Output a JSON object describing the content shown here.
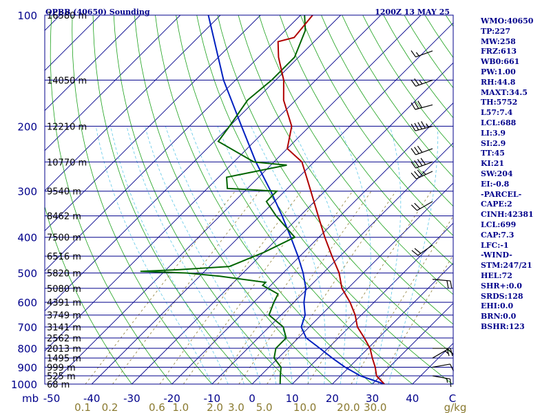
{
  "header": {
    "station": "OPBB (40650) Sounding",
    "time": "1200Z 13 MAY 25"
  },
  "indices": [
    "WMO:40650",
    "TP:227",
    "MW:258",
    "FRZ:613",
    "WB0:661",
    "PW:1.00",
    "RH:44.8",
    "MAXT:34.5",
    "TH:5752",
    "L57:7.4",
    "LCL:688",
    "LI:3.9",
    "SI:2.9",
    "TT:45",
    "KI:21",
    "SW:204",
    "EI:-0.8",
    "-PARCEL-",
    "CAPE:2",
    "CINH:42381",
    "LCL:699",
    "CAP:7.3",
    "LFC:-1",
    "-WIND-",
    "STM:247/21",
    "HEL:72",
    "SHR+:0.0",
    "SRDS:128",
    "EHI:0.0",
    "BRN:0.0",
    "BSHR:123"
  ],
  "colors": {
    "frame": "#00008b",
    "temperature": "#b00000",
    "dewpoint": "#006400",
    "parcel": "#0020c0",
    "dry_adiabats": "#1aa01a",
    "moist_adiabats": "#5fc8e8",
    "mixing_ratio": "#8a7a30"
  },
  "chart_data": {
    "type": "line",
    "diagram": "skew-T log-P",
    "y_scale": "log",
    "ylim": [
      1000,
      100
    ],
    "xlim": [
      -50,
      50
    ],
    "pressure_ticks": [
      100,
      200,
      300,
      400,
      500,
      600,
      700,
      800,
      900,
      1000
    ],
    "y_unit_label": "mb",
    "temperature_ticks": [
      "-50",
      "-40",
      "-30",
      "-20",
      "-10",
      "0",
      "10",
      "20",
      "30",
      "40",
      "C"
    ],
    "mixing_ratio_ticks": [
      "0.1",
      "0.2",
      "0.6",
      "1.0",
      "2.0",
      "3.0",
      "5.0",
      "10.0",
      "20.0",
      "30.0",
      "g/kg"
    ],
    "mixing_ratio_values": [
      0.1,
      0.2,
      0.6,
      1.0,
      2.0,
      3.0,
      5.0,
      10.0,
      20.0,
      30.0
    ],
    "height_labels": [
      {
        "p": 100,
        "label": "16580 m"
      },
      {
        "p": 150,
        "label": "14050 m"
      },
      {
        "p": 200,
        "label": "12210 m"
      },
      {
        "p": 250,
        "label": "10770 m"
      },
      {
        "p": 300,
        "label": "9540 m"
      },
      {
        "p": 350,
        "label": "8462 m"
      },
      {
        "p": 400,
        "label": "7500 m"
      },
      {
        "p": 450,
        "label": "6516 m"
      },
      {
        "p": 500,
        "label": "5820 m"
      },
      {
        "p": 550,
        "label": "5080 m"
      },
      {
        "p": 600,
        "label": "4391 m"
      },
      {
        "p": 650,
        "label": "3749 m"
      },
      {
        "p": 700,
        "label": "3141 m"
      },
      {
        "p": 750,
        "label": "2562 m"
      },
      {
        "p": 800,
        "label": "2013 m"
      },
      {
        "p": 850,
        "label": "1495 m"
      },
      {
        "p": 900,
        "label": "999 m"
      },
      {
        "p": 950,
        "label": "525 m"
      },
      {
        "p": 1000,
        "label": "68 m"
      }
    ],
    "temperature_profile": [
      {
        "p": 1000,
        "t": 33.0
      },
      {
        "p": 950,
        "t": 29.0
      },
      {
        "p": 900,
        "t": 26.5
      },
      {
        "p": 850,
        "t": 23.5
      },
      {
        "p": 800,
        "t": 20.5
      },
      {
        "p": 750,
        "t": 16.5
      },
      {
        "p": 700,
        "t": 12.0
      },
      {
        "p": 650,
        "t": 8.5
      },
      {
        "p": 600,
        "t": 4.0
      },
      {
        "p": 550,
        "t": -1.5
      },
      {
        "p": 500,
        "t": -6.0
      },
      {
        "p": 450,
        "t": -12.0
      },
      {
        "p": 400,
        "t": -18.5
      },
      {
        "p": 350,
        "t": -25.5
      },
      {
        "p": 300,
        "t": -33.5
      },
      {
        "p": 250,
        "t": -43.0
      },
      {
        "p": 230,
        "t": -50.0
      },
      {
        "p": 200,
        "t": -54.5
      },
      {
        "p": 170,
        "t": -63.0
      },
      {
        "p": 150,
        "t": -68.0
      },
      {
        "p": 130,
        "t": -75.0
      },
      {
        "p": 118,
        "t": -79.0
      },
      {
        "p": 115,
        "t": -76.0
      },
      {
        "p": 100,
        "t": -77.0
      }
    ],
    "dewpoint_profile": [
      {
        "p": 1000,
        "t": 7.0
      },
      {
        "p": 950,
        "t": 5.0
      },
      {
        "p": 900,
        "t": 3.0
      },
      {
        "p": 850,
        "t": -1.0
      },
      {
        "p": 800,
        "t": -3.0
      },
      {
        "p": 750,
        "t": -3.0
      },
      {
        "p": 700,
        "t": -6.5
      },
      {
        "p": 650,
        "t": -13.0
      },
      {
        "p": 600,
        "t": -15.0
      },
      {
        "p": 570,
        "t": -16.0
      },
      {
        "p": 540,
        "t": -22.0
      },
      {
        "p": 530,
        "t": -22.0
      },
      {
        "p": 510,
        "t": -35.0
      },
      {
        "p": 500,
        "t": -44.0
      },
      {
        "p": 495,
        "t": -56.0
      },
      {
        "p": 490,
        "t": -47.0
      },
      {
        "p": 480,
        "t": -35.0
      },
      {
        "p": 440,
        "t": -30.0
      },
      {
        "p": 400,
        "t": -26.0
      },
      {
        "p": 350,
        "t": -36.0
      },
      {
        "p": 320,
        "t": -42.0
      },
      {
        "p": 300,
        "t": -42.0
      },
      {
        "p": 295,
        "t": -55.0
      },
      {
        "p": 275,
        "t": -58.0
      },
      {
        "p": 255,
        "t": -46.0
      },
      {
        "p": 250,
        "t": -55.0
      },
      {
        "p": 220,
        "t": -69.0
      },
      {
        "p": 200,
        "t": -70.0
      },
      {
        "p": 170,
        "t": -72.0
      },
      {
        "p": 150,
        "t": -71.0
      },
      {
        "p": 130,
        "t": -71.0
      },
      {
        "p": 110,
        "t": -75.0
      },
      {
        "p": 100,
        "t": -79.0
      }
    ],
    "parcel_profile": [
      {
        "p": 1000,
        "t": 33.0
      },
      {
        "p": 950,
        "t": 25.0
      },
      {
        "p": 900,
        "t": 19.0
      },
      {
        "p": 850,
        "t": 13.5
      },
      {
        "p": 800,
        "t": 8.0
      },
      {
        "p": 750,
        "t": 2.0
      },
      {
        "p": 700,
        "t": -2.0
      },
      {
        "p": 650,
        "t": -4.0
      },
      {
        "p": 600,
        "t": -7.5
      },
      {
        "p": 550,
        "t": -10.5
      },
      {
        "p": 500,
        "t": -15.0
      },
      {
        "p": 450,
        "t": -20.5
      },
      {
        "p": 400,
        "t": -27.0
      },
      {
        "p": 350,
        "t": -34.5
      },
      {
        "p": 300,
        "t": -43.5
      },
      {
        "p": 250,
        "t": -54.5
      },
      {
        "p": 200,
        "t": -67.0
      },
      {
        "p": 150,
        "t": -83.0
      },
      {
        "p": 100,
        "t": -103.0
      }
    ],
    "wind_barbs": [
      {
        "p": 125,
        "dir": 250,
        "kt": 15
      },
      {
        "p": 150,
        "dir": 250,
        "kt": 25
      },
      {
        "p": 175,
        "dir": 255,
        "kt": 30
      },
      {
        "p": 200,
        "dir": 255,
        "kt": 45
      },
      {
        "p": 230,
        "dir": 250,
        "kt": 30
      },
      {
        "p": 250,
        "dir": 250,
        "kt": 40
      },
      {
        "p": 265,
        "dir": 245,
        "kt": 35
      },
      {
        "p": 320,
        "dir": 240,
        "kt": 20
      },
      {
        "p": 420,
        "dir": 235,
        "kt": 20
      },
      {
        "p": 520,
        "dir": 95,
        "kt": 20
      },
      {
        "p": 800,
        "dir": 90,
        "kt": 20
      },
      {
        "p": 850,
        "dir": 60,
        "kt": 15
      },
      {
        "p": 900,
        "dir": 80,
        "kt": 10
      },
      {
        "p": 950,
        "dir": 100,
        "kt": 15
      }
    ]
  }
}
